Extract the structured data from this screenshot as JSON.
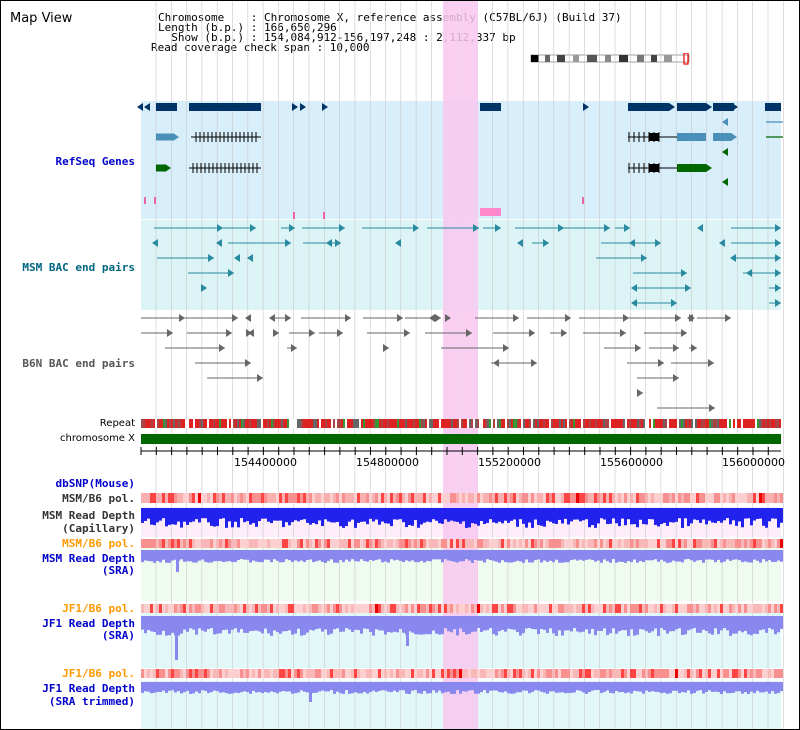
{
  "window": {
    "title": "Map View"
  },
  "info": {
    "chromosome_line": "Chromosome    : Chromosome X, reference assembly (C57BL/6J) (Build 37)",
    "length_line": "Length (b.p.) : 166,650,296",
    "show_line": "  Show (b.p.) : 154,084,912-156,197,248 : 2,112,337 bp",
    "coverage_line": "Read coverage check span : 10,000"
  },
  "tracks": {
    "refseq": {
      "label": "RefSeq Genes",
      "color": "#0000cc"
    },
    "msm_bac": {
      "label": "MSM BAC end pairs",
      "color": "#006680"
    },
    "b6n_bac": {
      "label": "B6N BAC end pairs",
      "color": "#555555"
    },
    "repeat": {
      "label": "Repeat"
    },
    "chrom": {
      "label": "chromosome X"
    },
    "dbsnp": {
      "label": "dbSNP(Mouse)",
      "color": "#0000cc"
    },
    "msm_b6_pol_cap": {
      "label": "MSM/B6 pol.",
      "color": "#333333"
    },
    "msm_depth_cap": {
      "line1": "MSM Read Depth",
      "line2": "(Capillary)",
      "color": "#333333"
    },
    "msm_b6_pol_sra": {
      "label": "MSM/B6 pol.",
      "color": "#ff9900"
    },
    "msm_depth_sra": {
      "line1": "MSM Read Depth",
      "line2": "(SRA)",
      "color": "#0000cc"
    },
    "jf1_b6_pol_sra": {
      "label": "JF1/B6 pol.",
      "color": "#ff9900"
    },
    "jf1_depth_sra": {
      "line1": "JF1 Read Depth",
      "line2": "(SRA)",
      "color": "#0000cc"
    },
    "jf1_b6_pol_trim": {
      "label": "JF1/B6 pol.",
      "color": "#ff9900"
    },
    "jf1_depth_trim": {
      "line1": "JF1 Read Depth",
      "line2": "(SRA trimmed)",
      "color": "#0000cc"
    }
  },
  "axis": {
    "ticks": [
      "154400000",
      "154800000",
      "155200000",
      "155600000",
      "156000000"
    ]
  },
  "colors": {
    "highlight": "#f8c8f0",
    "refseq_bg": "#d8eefa",
    "msm_bg": "#dcf4f6",
    "gene_dark": "#003366",
    "gene_mid": "#4a8fb8",
    "gene_green": "#006600",
    "chrom_green": "#006600",
    "depth_blue": "#3333ee",
    "depth_light": "#8888ee",
    "pol_pink": "#f8a8a8"
  }
}
